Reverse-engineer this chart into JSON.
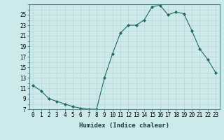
{
  "title": "",
  "xlabel": "Humidex (Indice chaleur)",
  "x": [
    0,
    1,
    2,
    3,
    4,
    5,
    6,
    7,
    8,
    9,
    10,
    11,
    12,
    13,
    14,
    15,
    16,
    17,
    18,
    19,
    20,
    21,
    22,
    23
  ],
  "y": [
    11.5,
    10.5,
    9.0,
    8.5,
    8.0,
    7.5,
    7.2,
    7.0,
    7.0,
    13.0,
    17.5,
    21.5,
    23.0,
    23.0,
    24.0,
    26.5,
    26.8,
    25.0,
    25.5,
    25.2,
    22.0,
    18.5,
    16.5,
    14.0
  ],
  "line_color": "#1a6b5e",
  "marker": "D",
  "marker_size": 2.0,
  "bg_color": "#cdeaea",
  "grid_color": "#c0d8d8",
  "ylim": [
    7,
    27
  ],
  "yticks": [
    7,
    9,
    11,
    13,
    15,
    17,
    19,
    21,
    23,
    25
  ],
  "xticks": [
    0,
    1,
    2,
    3,
    4,
    5,
    6,
    7,
    8,
    9,
    10,
    11,
    12,
    13,
    14,
    15,
    16,
    17,
    18,
    19,
    20,
    21,
    22,
    23
  ],
  "tick_fontsize": 5.5,
  "label_fontsize": 6.5
}
